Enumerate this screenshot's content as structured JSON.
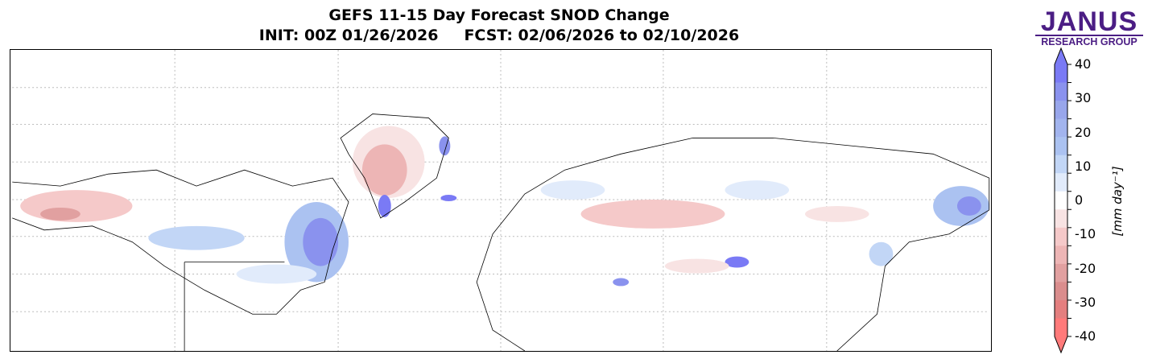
{
  "title": {
    "line1": "GEFS 11-15 Day Forecast SNOD Change",
    "init": "INIT: 00Z 01/26/2026",
    "fcst": "FCST: 02/06/2026 to 02/10/2026"
  },
  "logo": {
    "name": "JANUS",
    "subtitle": "RESEARCH GROUP",
    "color": "#4b1d84"
  },
  "colorbar": {
    "label": "[mm day⁻¹]",
    "ticks": [
      "40",
      "30",
      "20",
      "10",
      "0",
      "-10",
      "-20",
      "-30",
      "-40"
    ],
    "levels": [
      -40,
      -35,
      -30,
      -25,
      -20,
      -15,
      -10,
      -5,
      5,
      10,
      15,
      20,
      25,
      30,
      35,
      40
    ],
    "colors_top_to_bottom": [
      "#7a7af5",
      "#8a92ee",
      "#98a6eb",
      "#a2b4ee",
      "#abc2f1",
      "#c2d6f6",
      "#e1ebfb",
      "#ffffff",
      "#f8e3e3",
      "#f5c9c9",
      "#edb5b5",
      "#e1a0a0",
      "#da8d8d",
      "#e47f7f",
      "#ff7a7a"
    ],
    "extend_max_color": "#7a7af5",
    "extend_min_color": "#ff7a7a"
  }
}
